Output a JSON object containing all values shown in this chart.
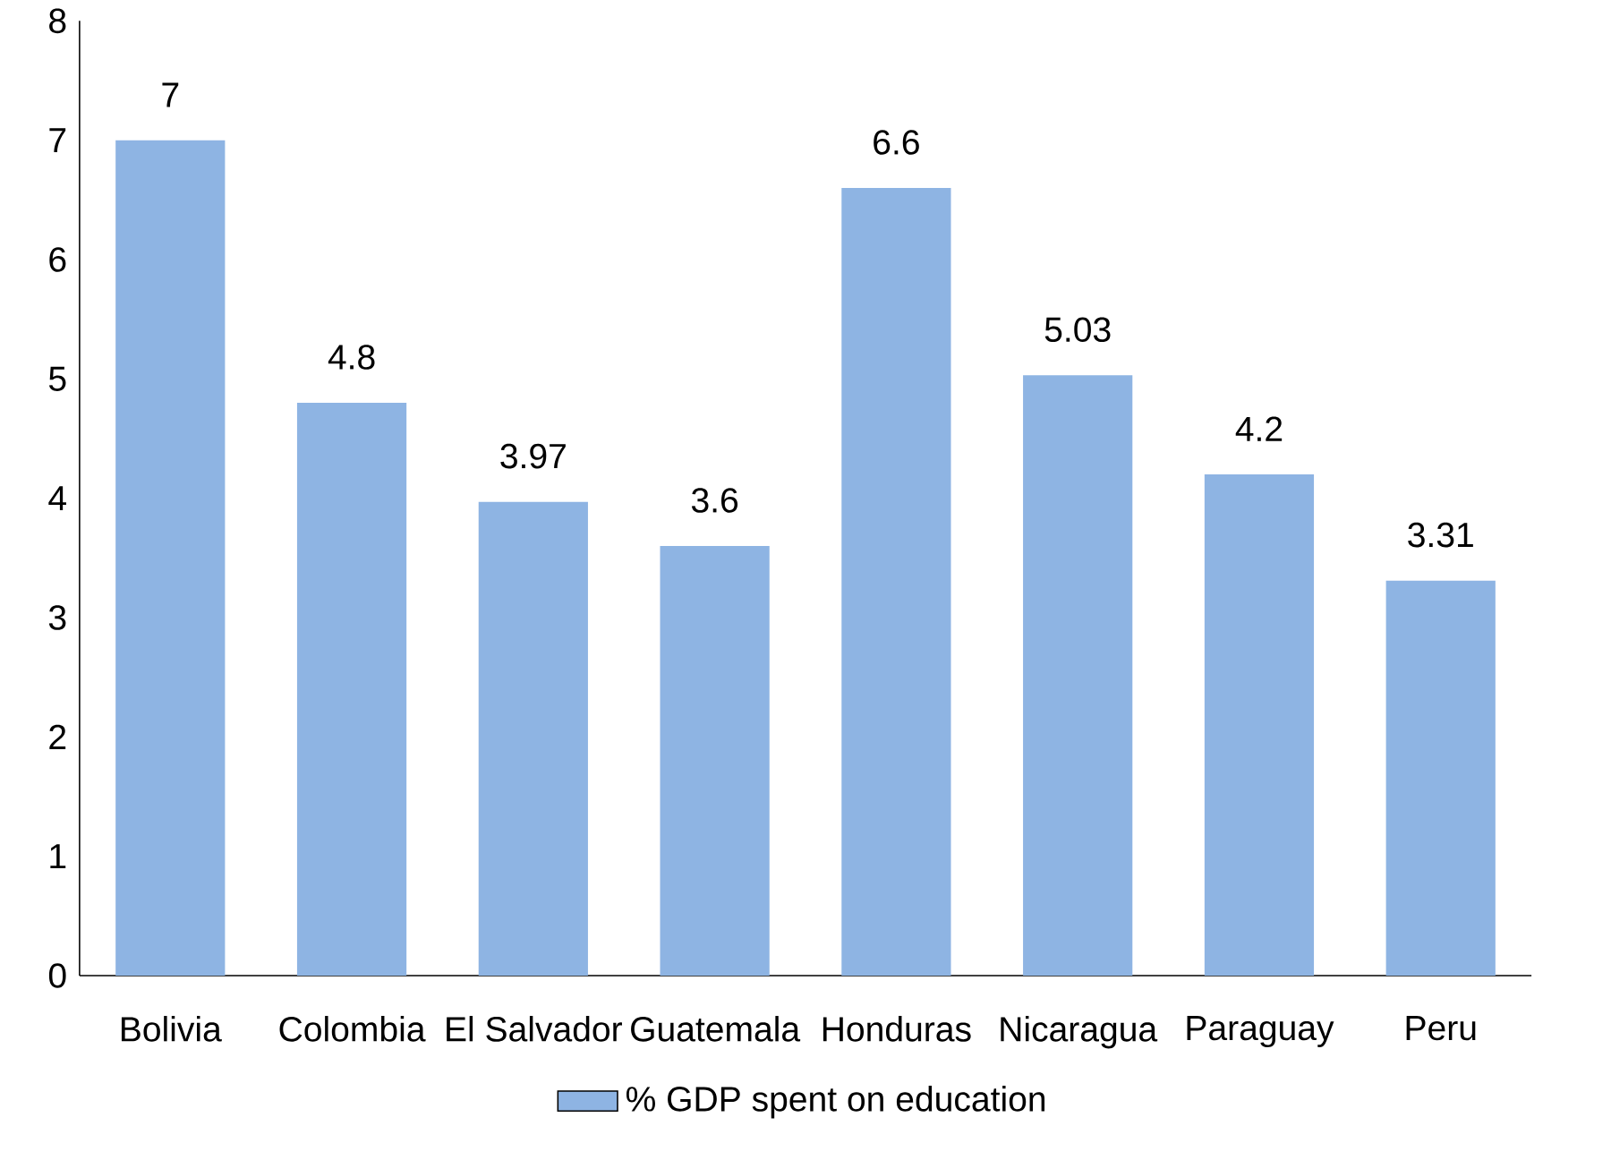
{
  "chart_data": {
    "type": "bar",
    "categories": [
      "Bolivia",
      "Colombia",
      "El Salvador",
      "Guatemala",
      "Honduras",
      "Nicaragua",
      "Paraguay",
      "Peru"
    ],
    "series": [
      {
        "name": "% GDP spent on education",
        "color": "#8eb4e3",
        "values": [
          7,
          4.8,
          3.97,
          3.6,
          6.6,
          5.03,
          4.2,
          3.31
        ]
      }
    ],
    "ylim": [
      0,
      8
    ],
    "yticks": [
      0,
      1,
      2,
      3,
      4,
      5,
      6,
      7,
      8
    ],
    "grid": false,
    "legend": "bottom",
    "data_labels": true
  }
}
